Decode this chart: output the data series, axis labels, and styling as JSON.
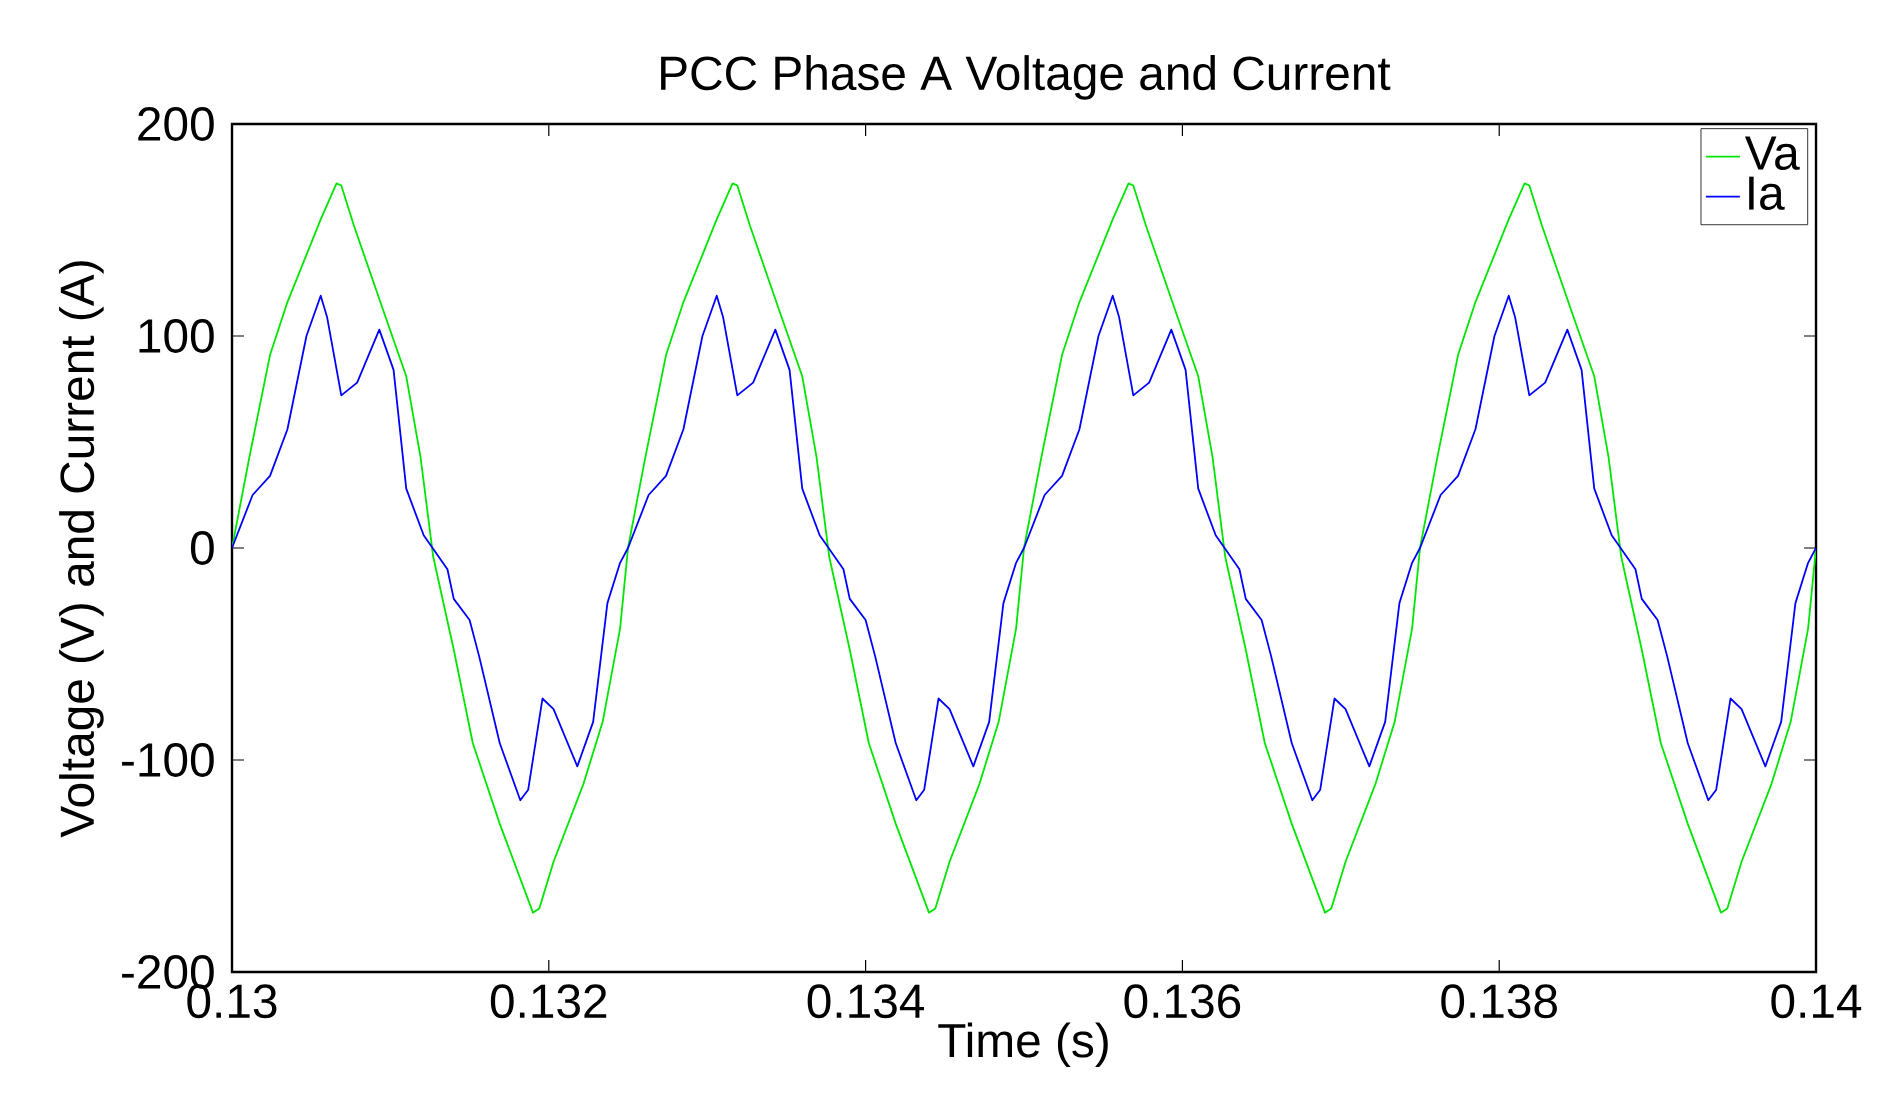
{
  "chart_data": {
    "type": "line",
    "title": "PCC Phase A Voltage and Current",
    "xlabel": "Time (s)",
    "ylabel": "Voltage (V) and Current (A)",
    "xlim": [
      0.13,
      0.14
    ],
    "ylim": [
      -200,
      200
    ],
    "xticks": [
      0.13,
      0.132,
      0.134,
      0.136,
      0.138,
      0.14
    ],
    "yticks": [
      -200,
      -100,
      0,
      100,
      200
    ],
    "legend": "top right",
    "grid": false,
    "marker": "none",
    "line_style": "solid",
    "series": [
      {
        "name": "Va",
        "color": "#00e600",
        "x": [
          0.13,
          0.13011,
          0.13024,
          0.13035,
          0.13056,
          0.13066,
          0.13069,
          0.13077,
          0.13096,
          0.1311,
          0.13119,
          0.13127,
          0.1314,
          0.13152,
          0.13169,
          0.1319,
          0.13194,
          0.13203,
          0.13222,
          0.13234,
          0.13245,
          0.1325,
          0.13261,
          0.13274,
          0.13285,
          0.13306,
          0.13316,
          0.13319,
          0.13327,
          0.13346,
          0.1336,
          0.13369,
          0.13377,
          0.1339,
          0.13402,
          0.13419,
          0.1344,
          0.13444,
          0.13453,
          0.13472,
          0.13484,
          0.13495,
          0.135,
          0.13511,
          0.13524,
          0.13535,
          0.13556,
          0.13566,
          0.13569,
          0.13577,
          0.13596,
          0.1361,
          0.13619,
          0.13627,
          0.1364,
          0.13652,
          0.13669,
          0.1369,
          0.13694,
          0.13703,
          0.13722,
          0.13734,
          0.13745,
          0.1375,
          0.13761,
          0.13774,
          0.13785,
          0.13806,
          0.13816,
          0.13819,
          0.13827,
          0.13846,
          0.1386,
          0.13869,
          0.13877,
          0.1389,
          0.13902,
          0.13919,
          0.1394,
          0.13944,
          0.13953,
          0.13972,
          0.13984,
          0.13995,
          0.14
        ],
        "values": [
          0,
          43,
          91,
          116,
          155,
          172,
          171,
          152,
          111,
          81,
          43,
          -4,
          -48,
          -92,
          -130,
          -172,
          -170,
          -148,
          -111,
          -82,
          -38,
          0,
          43,
          91,
          116,
          155,
          172,
          171,
          152,
          111,
          81,
          43,
          -4,
          -48,
          -92,
          -130,
          -172,
          -170,
          -148,
          -111,
          -82,
          -38,
          0,
          43,
          91,
          116,
          155,
          172,
          171,
          152,
          111,
          81,
          43,
          -4,
          -48,
          -92,
          -130,
          -172,
          -170,
          -148,
          -111,
          -82,
          -38,
          0,
          43,
          91,
          116,
          155,
          172,
          171,
          152,
          111,
          81,
          43,
          -4,
          -48,
          -92,
          -130,
          -172,
          -170,
          -148,
          -111,
          -82,
          -38,
          0
        ]
      },
      {
        "name": "Ia",
        "color": "#0000ff",
        "x": [
          0.13,
          0.13013,
          0.13024,
          0.13035,
          0.13047,
          0.13056,
          0.1306,
          0.13069,
          0.13079,
          0.13093,
          0.13102,
          0.1311,
          0.13121,
          0.13136,
          0.1314,
          0.1315,
          0.13156,
          0.13169,
          0.13182,
          0.13187,
          0.13196,
          0.13203,
          0.13218,
          0.13228,
          0.13237,
          0.13245,
          0.1325,
          0.13263,
          0.13274,
          0.13285,
          0.13297,
          0.13306,
          0.1331,
          0.13319,
          0.13329,
          0.13343,
          0.13352,
          0.1336,
          0.13371,
          0.13386,
          0.1339,
          0.134,
          0.13406,
          0.13419,
          0.13432,
          0.13437,
          0.13446,
          0.13453,
          0.13468,
          0.13478,
          0.13487,
          0.13495,
          0.135,
          0.13513,
          0.13524,
          0.13535,
          0.13547,
          0.13556,
          0.1356,
          0.13569,
          0.13579,
          0.13593,
          0.13602,
          0.1361,
          0.13621,
          0.13636,
          0.1364,
          0.1365,
          0.13656,
          0.13669,
          0.13682,
          0.13687,
          0.13696,
          0.13703,
          0.13718,
          0.13728,
          0.13737,
          0.13745,
          0.1375,
          0.13763,
          0.13774,
          0.13785,
          0.13797,
          0.13806,
          0.1381,
          0.13819,
          0.13829,
          0.13843,
          0.13852,
          0.1386,
          0.13871,
          0.13886,
          0.1389,
          0.139,
          0.13906,
          0.13919,
          0.13932,
          0.13937,
          0.13946,
          0.13953,
          0.13968,
          0.13978,
          0.13987,
          0.13995,
          0.14
        ],
        "values": [
          0,
          25,
          34,
          56,
          100,
          119,
          109,
          72,
          78,
          103,
          84,
          28,
          6,
          -10,
          -24,
          -34,
          -51,
          -92,
          -119,
          -114,
          -71,
          -76,
          -103,
          -82,
          -26,
          -7,
          0,
          25,
          34,
          56,
          100,
          119,
          109,
          72,
          78,
          103,
          84,
          28,
          6,
          -10,
          -24,
          -34,
          -51,
          -92,
          -119,
          -114,
          -71,
          -76,
          -103,
          -82,
          -26,
          -7,
          0,
          25,
          34,
          56,
          100,
          119,
          109,
          72,
          78,
          103,
          84,
          28,
          6,
          -10,
          -24,
          -34,
          -51,
          -92,
          -119,
          -114,
          -71,
          -76,
          -103,
          -82,
          -26,
          -7,
          0,
          25,
          34,
          56,
          100,
          119,
          109,
          72,
          78,
          103,
          84,
          28,
          6,
          -10,
          -24,
          -34,
          -51,
          -92,
          -119,
          -114,
          -71,
          -76,
          -103,
          -82,
          -26,
          -7,
          0
        ]
      }
    ]
  }
}
